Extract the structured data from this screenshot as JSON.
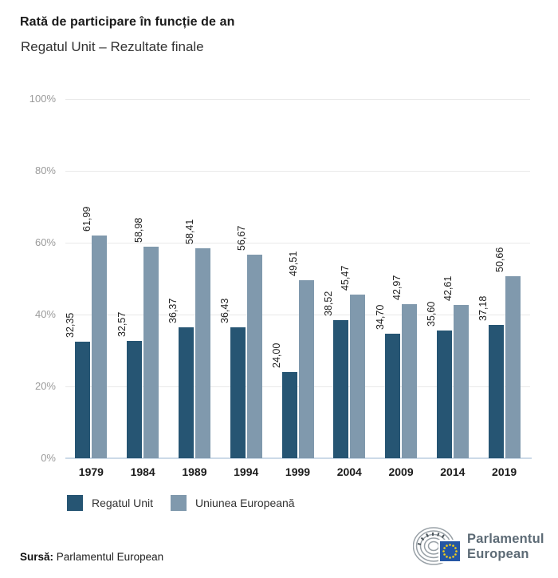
{
  "header": {
    "title": "Rată de participare în funcție de an",
    "subtitle": "Regatul Unit – Rezultate finale"
  },
  "chart_data": {
    "type": "bar",
    "title": "Rată de participare în funcție de an",
    "subtitle": "Regatul Unit – Rezultate finale",
    "categories": [
      "1979",
      "1984",
      "1989",
      "1994",
      "1999",
      "2004",
      "2009",
      "2014",
      "2019"
    ],
    "series": [
      {
        "name": "Regatul Unit",
        "color": "#265573",
        "values": [
          32.35,
          32.57,
          36.37,
          36.43,
          24.0,
          38.52,
          34.7,
          35.6,
          37.18
        ],
        "labels": [
          "32,35",
          "32,57",
          "36,37",
          "36,43",
          "24,00",
          "38,52",
          "34,70",
          "35,60",
          "37,18"
        ]
      },
      {
        "name": "Uniunea Europeană",
        "color": "#8099ad",
        "values": [
          61.99,
          58.98,
          58.41,
          56.67,
          49.51,
          45.47,
          42.97,
          42.61,
          50.66
        ],
        "labels": [
          "61,99",
          "58,98",
          "58,41",
          "56,67",
          "49,51",
          "45,47",
          "42,97",
          "42,61",
          "50,66"
        ]
      }
    ],
    "ylim": [
      0,
      100
    ],
    "yticks": [
      "0%",
      "20%",
      "40%",
      "60%",
      "80%",
      "100%"
    ],
    "ytick_values": [
      0,
      20,
      40,
      60,
      80,
      100
    ],
    "grid": true,
    "legend_position": "bottom",
    "value_label_rotation": -90,
    "value_decimal_separator": ","
  },
  "footer": {
    "source_label": "Sursă:",
    "source_value": "Parlamentul European",
    "logo_line1": "Parlamentul",
    "logo_line2": "European"
  },
  "colors": {
    "series1": "#265573",
    "series2": "#8099ad",
    "gridline": "#e9e9e9",
    "baseline": "#ccdae8",
    "axis_text": "#9b9b9b",
    "eu_flag_blue": "#2456a4",
    "eu_star_yellow": "#f7d117",
    "logo_gray": "#98a0a6",
    "logo_text": "#5d6b76"
  }
}
